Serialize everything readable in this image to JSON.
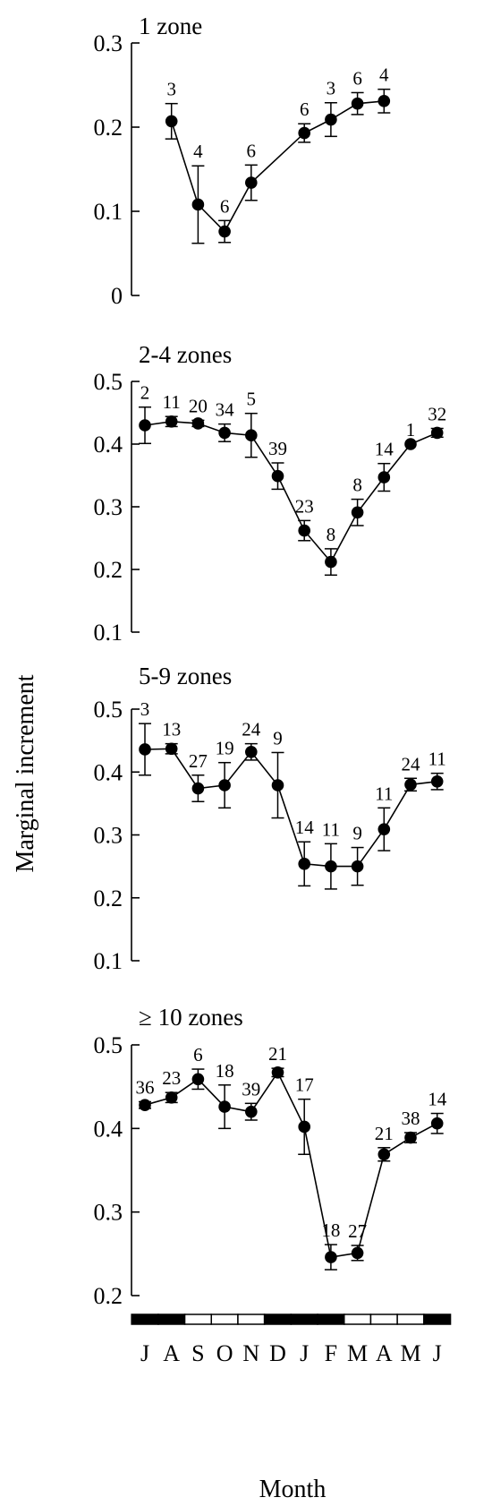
{
  "figure": {
    "ylabel": "Marginal increment",
    "xlabel": "Month"
  },
  "chart_data": {
    "type": "line",
    "months": [
      "J",
      "A",
      "S",
      "O",
      "N",
      "D",
      "J",
      "F",
      "M",
      "A",
      "M",
      "J"
    ],
    "month_bar_dark": [
      true,
      true,
      false,
      false,
      false,
      true,
      true,
      true,
      false,
      false,
      false,
      true
    ],
    "panels": [
      {
        "title": "1 zone",
        "ylim": [
          0,
          0.3
        ],
        "yticks": [
          0,
          0.1,
          0.2,
          0.3
        ],
        "ytick_labels": [
          "0",
          "0.1",
          "0.2",
          "0.3"
        ],
        "points": [
          {
            "month": 1,
            "y": 0.207,
            "err": 0.021,
            "n": "3"
          },
          {
            "month": 2,
            "y": 0.108,
            "err": 0.046,
            "n": "4"
          },
          {
            "month": 3,
            "y": 0.076,
            "err": 0.013,
            "n": "6"
          },
          {
            "month": 4,
            "y": 0.134,
            "err": 0.021,
            "n": "6"
          },
          {
            "month": 6,
            "y": 0.193,
            "err": 0.011,
            "n": "6"
          },
          {
            "month": 7,
            "y": 0.209,
            "err": 0.02,
            "n": "3"
          },
          {
            "month": 8,
            "y": 0.228,
            "err": 0.013,
            "n": "6"
          },
          {
            "month": 9,
            "y": 0.231,
            "err": 0.014,
            "n": "4"
          }
        ]
      },
      {
        "title": "2-4 zones",
        "ylim": [
          0.1,
          0.5
        ],
        "yticks": [
          0.1,
          0.2,
          0.3,
          0.4,
          0.5
        ],
        "ytick_labels": [
          "0.1",
          "0.2",
          "0.3",
          "0.4",
          "0.5"
        ],
        "points": [
          {
            "month": 0,
            "y": 0.43,
            "err": 0.029,
            "n": "2"
          },
          {
            "month": 1,
            "y": 0.436,
            "err": 0.008,
            "n": "11"
          },
          {
            "month": 2,
            "y": 0.433,
            "err": 0.005,
            "n": "20"
          },
          {
            "month": 3,
            "y": 0.418,
            "err": 0.014,
            "n": "34"
          },
          {
            "month": 4,
            "y": 0.414,
            "err": 0.035,
            "n": "5"
          },
          {
            "month": 5,
            "y": 0.349,
            "err": 0.021,
            "n": "39"
          },
          {
            "month": 6,
            "y": 0.262,
            "err": 0.016,
            "n": "23"
          },
          {
            "month": 7,
            "y": 0.212,
            "err": 0.021,
            "n": "8"
          },
          {
            "month": 8,
            "y": 0.291,
            "err": 0.021,
            "n": "8"
          },
          {
            "month": 9,
            "y": 0.347,
            "err": 0.022,
            "n": "14"
          },
          {
            "month": 10,
            "y": 0.4,
            "err": 0.0,
            "n": "1"
          },
          {
            "month": 11,
            "y": 0.418,
            "err": 0.007,
            "n": "32"
          }
        ]
      },
      {
        "title": "5-9 zones",
        "ylim": [
          0.1,
          0.5
        ],
        "yticks": [
          0.1,
          0.2,
          0.3,
          0.4,
          0.5
        ],
        "ytick_labels": [
          "0.1",
          "0.2",
          "0.3",
          "0.4",
          "0.5"
        ],
        "points": [
          {
            "month": 0,
            "y": 0.436,
            "err": 0.041,
            "n": "3"
          },
          {
            "month": 1,
            "y": 0.437,
            "err": 0.008,
            "n": "13"
          },
          {
            "month": 2,
            "y": 0.374,
            "err": 0.021,
            "n": "27"
          },
          {
            "month": 3,
            "y": 0.379,
            "err": 0.036,
            "n": "19"
          },
          {
            "month": 4,
            "y": 0.432,
            "err": 0.013,
            "n": "24"
          },
          {
            "month": 5,
            "y": 0.379,
            "err": 0.052,
            "n": "9"
          },
          {
            "month": 6,
            "y": 0.254,
            "err": 0.035,
            "n": "14"
          },
          {
            "month": 7,
            "y": 0.25,
            "err": 0.036,
            "n": "11"
          },
          {
            "month": 8,
            "y": 0.25,
            "err": 0.03,
            "n": "9"
          },
          {
            "month": 9,
            "y": 0.309,
            "err": 0.034,
            "n": "11"
          },
          {
            "month": 10,
            "y": 0.38,
            "err": 0.01,
            "n": "24"
          },
          {
            "month": 11,
            "y": 0.385,
            "err": 0.013,
            "n": "11"
          }
        ]
      },
      {
        "title": "≥ 10 zones",
        "ylim": [
          0.2,
          0.5
        ],
        "yticks": [
          0.2,
          0.3,
          0.4,
          0.5
        ],
        "ytick_labels": [
          "0.2",
          "0.3",
          "0.4",
          "0.5"
        ],
        "points": [
          {
            "month": 0,
            "y": 0.428,
            "err": 0.004,
            "n": "36"
          },
          {
            "month": 1,
            "y": 0.437,
            "err": 0.006,
            "n": "23"
          },
          {
            "month": 2,
            "y": 0.459,
            "err": 0.012,
            "n": "6"
          },
          {
            "month": 3,
            "y": 0.426,
            "err": 0.026,
            "n": "18"
          },
          {
            "month": 4,
            "y": 0.42,
            "err": 0.01,
            "n": "39"
          },
          {
            "month": 5,
            "y": 0.467,
            "err": 0.005,
            "n": "21"
          },
          {
            "month": 6,
            "y": 0.402,
            "err": 0.033,
            "n": "17"
          },
          {
            "month": 7,
            "y": 0.246,
            "err": 0.015,
            "n": "18"
          },
          {
            "month": 8,
            "y": 0.251,
            "err": 0.009,
            "n": "27"
          },
          {
            "month": 9,
            "y": 0.369,
            "err": 0.008,
            "n": "21"
          },
          {
            "month": 10,
            "y": 0.389,
            "err": 0.006,
            "n": "38"
          },
          {
            "month": 11,
            "y": 0.406,
            "err": 0.012,
            "n": "14"
          }
        ]
      }
    ]
  }
}
